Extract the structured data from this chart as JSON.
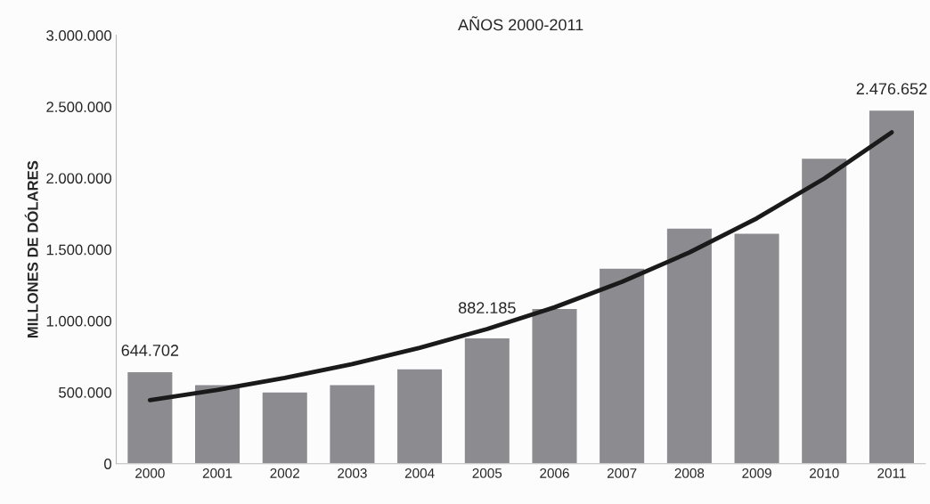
{
  "chart_data": {
    "type": "bar",
    "title": "AÑOS 2000-2011",
    "ylabel": "MILLONES DE DÓLARES",
    "categories": [
      "2000",
      "2001",
      "2002",
      "2003",
      "2004",
      "2005",
      "2006",
      "2007",
      "2008",
      "2009",
      "2010",
      "2011"
    ],
    "series": [
      {
        "color": "#8b8b90",
        "values": [
          644702,
          555000,
          503000,
          555000,
          665000,
          882185,
          1087000,
          1370000,
          1650000,
          1615000,
          2140000,
          2476652
        ],
        "value_labels": [
          "644.702",
          null,
          null,
          null,
          null,
          "882.185",
          null,
          null,
          null,
          null,
          null,
          "2.476.652"
        ]
      },
      {
        "type": "line",
        "color": "#1a1a1a",
        "values": [
          445000,
          517000,
          601000,
          698000,
          811000,
          943000,
          1095000,
          1273000,
          1479000,
          1718000,
          1997000,
          2320000
        ]
      }
    ],
    "ylim": [
      0,
      3000000
    ],
    "yticks": [
      {
        "value": 0,
        "label": "0"
      },
      {
        "value": 500000,
        "label": "500.000"
      },
      {
        "value": 1000000,
        "label": "1.000.000"
      },
      {
        "value": 1500000,
        "label": "1.500.000"
      },
      {
        "value": 2000000,
        "label": "2.000.000"
      },
      {
        "value": 2500000,
        "label": "2.500.000"
      },
      {
        "value": 3000000,
        "label": "3.000.000"
      }
    ],
    "grid": false,
    "legend": false
  }
}
